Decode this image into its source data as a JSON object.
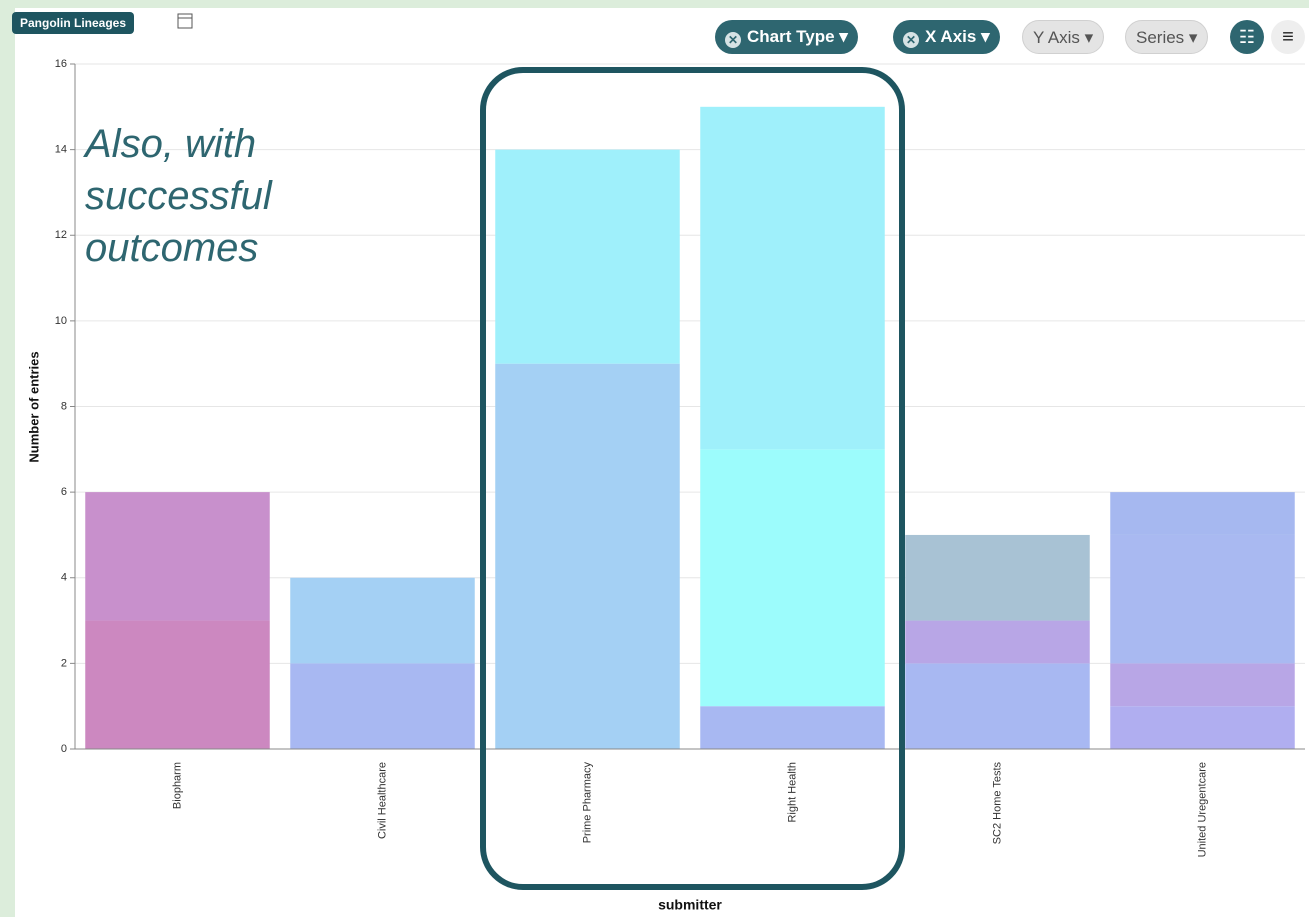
{
  "tag": "Pangolin Lineages",
  "toolbar": {
    "buttons": [
      "Chart Type",
      "X Axis",
      "Y Axis",
      "Series"
    ]
  },
  "chart_data": {
    "type": "bar",
    "annotation": "Also, with successful outcomes",
    "x_label": "submitter",
    "y_label": "Number of entries",
    "categories": [
      "Biopharm",
      "Civil Healthcare",
      "Prime Pharmacy",
      "Right Health",
      "SC2 Home Tests",
      "United Uregentcare"
    ],
    "stacked": true,
    "series": [
      {
        "color": "#cc88c0",
        "values": [
          3,
          null,
          null,
          null,
          null,
          null
        ]
      },
      {
        "color": "#a8b8f2",
        "values": [
          null,
          2,
          null,
          1,
          2,
          null
        ]
      },
      {
        "color": "#b0aef0",
        "values": [
          null,
          null,
          null,
          null,
          null,
          1
        ]
      },
      {
        "color": "#b8a6e6",
        "values": [
          null,
          null,
          null,
          null,
          1,
          1
        ]
      },
      {
        "color": "#a9b9f1",
        "values": [
          null,
          null,
          null,
          null,
          null,
          3
        ]
      },
      {
        "color": "#a6b8f0",
        "values": [
          null,
          null,
          null,
          null,
          null,
          1
        ]
      },
      {
        "color": "#c890cc",
        "values": [
          3,
          null,
          null,
          null,
          null,
          null
        ]
      },
      {
        "color": "#a4d0f4",
        "values": [
          null,
          2,
          9,
          null,
          null,
          null
        ]
      },
      {
        "color": "#9cfcfc",
        "values": [
          null,
          null,
          null,
          6,
          null,
          null
        ]
      },
      {
        "color": "#9ff0fb",
        "values": [
          null,
          null,
          5,
          8,
          null,
          null
        ]
      },
      {
        "color": "#a8c2d4",
        "values": [
          null,
          null,
          null,
          null,
          2,
          null
        ]
      }
    ],
    "ylim": [
      0,
      16
    ],
    "yticks": [
      0,
      2,
      4,
      6,
      8,
      10,
      12,
      14,
      16
    ],
    "grid": true
  }
}
